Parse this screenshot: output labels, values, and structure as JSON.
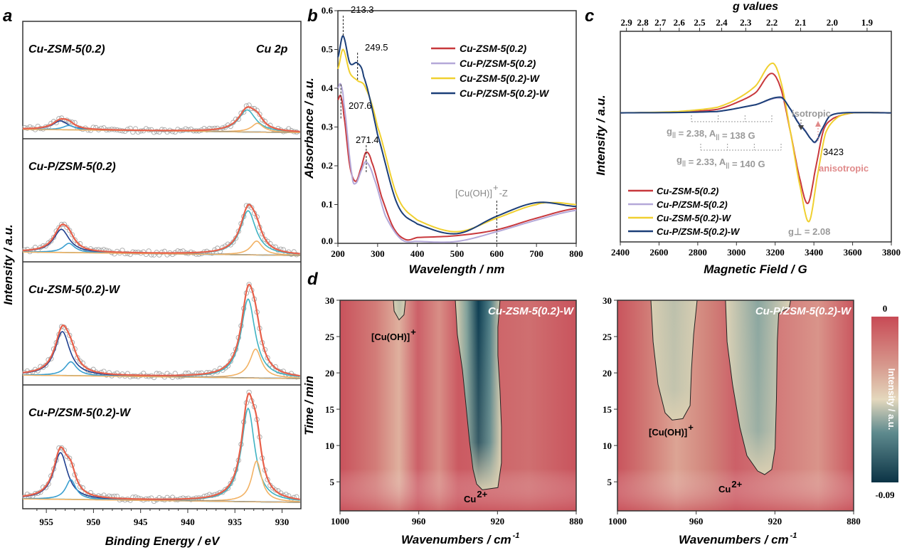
{
  "panel_labels": {
    "a": "a",
    "b": "b",
    "c": "c",
    "d": "d"
  },
  "colors": {
    "cu_zsm5": "#c8383c",
    "cu_p_zsm5": "#b4a8d8",
    "cu_zsm5_w": "#f0d030",
    "cu_p_zsm5_w": "#1c3f78",
    "xps_total": "#e8604a",
    "xps_comp_teal": "#3fb3c3",
    "xps_comp_orange": "#f2b264",
    "xps_comp_navy": "#1f3f8f",
    "xps_comp_blue": "#3a9fd0",
    "xps_points": "#a8a8a8",
    "annotation_gray": "#9a9a9a",
    "annotation_pink": "#e08a8a"
  },
  "chart_data": [
    {
      "id": "a",
      "type": "line",
      "xlabel": "Binding Energy / eV",
      "ylabel": "Intensity / a.u.",
      "xlim": [
        957.5,
        928
      ],
      "xticks": [
        "955",
        "950",
        "945",
        "940",
        "935",
        "930"
      ],
      "corner_label": "Cu 2p",
      "subpanels": [
        {
          "label": "Cu-ZSM-5(0.2)",
          "peaks": [
            {
              "center": 933.7,
              "height": 0.2,
              "fwhm": 2.2,
              "color": "#3fb3c3"
            },
            {
              "center": 932.6,
              "height": 0.08,
              "fwhm": 1.5,
              "color": "#f2b264"
            },
            {
              "center": 953.5,
              "height": 0.08,
              "fwhm": 2.0,
              "color": "#1f3f8f"
            },
            {
              "center": 952.6,
              "height": 0.04,
              "fwhm": 1.5,
              "color": "#3a9fd0"
            }
          ]
        },
        {
          "label": "Cu-P/ZSM-5(0.2)",
          "peaks": [
            {
              "center": 933.6,
              "height": 0.38,
              "fwhm": 2.0,
              "color": "#3fb3c3"
            },
            {
              "center": 932.7,
              "height": 0.12,
              "fwhm": 1.5,
              "color": "#f2b264"
            },
            {
              "center": 953.4,
              "height": 0.2,
              "fwhm": 2.0,
              "color": "#1f3f8f"
            },
            {
              "center": 952.6,
              "height": 0.08,
              "fwhm": 1.5,
              "color": "#3a9fd0"
            }
          ]
        },
        {
          "label": "Cu-ZSM-5(0.2)-W",
          "peaks": [
            {
              "center": 933.6,
              "height": 0.68,
              "fwhm": 1.8,
              "color": "#3fb3c3"
            },
            {
              "center": 932.8,
              "height": 0.25,
              "fwhm": 1.5,
              "color": "#f2b264"
            },
            {
              "center": 953.3,
              "height": 0.38,
              "fwhm": 1.9,
              "color": "#1f3f8f"
            },
            {
              "center": 952.4,
              "height": 0.12,
              "fwhm": 1.5,
              "color": "#3a9fd0"
            }
          ]
        },
        {
          "label": "Cu-P/ZSM-5(0.2)-W",
          "peaks": [
            {
              "center": 933.6,
              "height": 0.8,
              "fwhm": 1.7,
              "color": "#3fb3c3"
            },
            {
              "center": 932.7,
              "height": 0.35,
              "fwhm": 1.3,
              "color": "#f2b264"
            },
            {
              "center": 953.5,
              "height": 0.4,
              "fwhm": 1.8,
              "color": "#1f3f8f"
            },
            {
              "center": 952.4,
              "height": 0.17,
              "fwhm": 1.3,
              "color": "#3a9fd0"
            }
          ]
        }
      ]
    },
    {
      "id": "b",
      "type": "line",
      "xlabel": "Wavelength / nm",
      "ylabel": "Absorbance / a.u.",
      "xlim": [
        200,
        800
      ],
      "ylim": [
        0,
        0.6
      ],
      "xticks": [
        200,
        300,
        400,
        500,
        600,
        700,
        800
      ],
      "yticks": [
        "0.0",
        "0.1",
        "0.2",
        "0.3",
        "0.4",
        "0.5",
        "0.6"
      ],
      "legend": "top-right",
      "series": [
        {
          "name": "Cu-ZSM-5(0.2)",
          "color": "#c8383c",
          "x": [
            200,
            207,
            215,
            230,
            245,
            260,
            271,
            285,
            310,
            340,
            370,
            400,
            500,
            600,
            700,
            800
          ],
          "y": [
            0.37,
            0.38,
            0.33,
            0.2,
            0.16,
            0.2,
            0.235,
            0.21,
            0.12,
            0.04,
            0.01,
            0.015,
            0.02,
            0.035,
            0.065,
            0.09
          ]
        },
        {
          "name": "Cu-P/ZSM-5(0.2)",
          "color": "#b4a8d8",
          "x": [
            200,
            207,
            215,
            235,
            245,
            260,
            271,
            290,
            320,
            360,
            400,
            500,
            600,
            700,
            800
          ],
          "y": [
            0.4,
            0.41,
            0.36,
            0.18,
            0.155,
            0.19,
            0.21,
            0.17,
            0.07,
            0.01,
            0.005,
            0.005,
            0.03,
            0.06,
            0.085
          ]
        },
        {
          "name": "Cu-ZSM-5(0.2)-W",
          "color": "#f0d030",
          "x": [
            200,
            213,
            230,
            249,
            270,
            300,
            350,
            400,
            500,
            600,
            700,
            750,
            800
          ],
          "y": [
            0.45,
            0.5,
            0.44,
            0.42,
            0.4,
            0.3,
            0.12,
            0.06,
            0.03,
            0.065,
            0.1,
            0.105,
            0.1
          ]
        },
        {
          "name": "Cu-P/ZSM-5(0.2)-W",
          "color": "#1c3f78",
          "x": [
            200,
            213,
            230,
            249,
            265,
            300,
            350,
            400,
            500,
            600,
            700,
            800
          ],
          "y": [
            0.48,
            0.535,
            0.465,
            0.465,
            0.43,
            0.28,
            0.1,
            0.05,
            0.025,
            0.07,
            0.105,
            0.095
          ]
        }
      ],
      "annotations": [
        {
          "text": "213.3",
          "x": 213.3
        },
        {
          "text": "249.5",
          "x": 249.5
        },
        {
          "text": "207.6",
          "x": 207.6
        },
        {
          "text": "271.4",
          "x": 271.4
        },
        {
          "text": "[Cu(OH)]",
          "sup": "+",
          "suffix": "-Z",
          "x": 600
        }
      ]
    },
    {
      "id": "c",
      "type": "line",
      "title_top_axis": "g values",
      "xlabel": "Magnetic Field / G",
      "ylabel": "Intensity / a.u.",
      "xlim": [
        2400,
        3800
      ],
      "ylim": [
        -1.9,
        1.2
      ],
      "xticks": [
        2400,
        2600,
        2800,
        3000,
        3200,
        3400,
        3600,
        3800
      ],
      "gticks": [
        "2.9",
        "2.8",
        "2.7",
        "2.6",
        "2.5",
        "2.4",
        "2.3",
        "2.2",
        "2.1",
        "2.0",
        "1.9"
      ],
      "legend": "bottom-left",
      "series": [
        {
          "name": "Cu-ZSM-5(0.2)",
          "color": "#c8383c",
          "x": [
            2400,
            2700,
            2900,
            3000,
            3100,
            3180,
            3230,
            3280,
            3330,
            3370,
            3410,
            3450,
            3500,
            3600,
            3800
          ],
          "y": [
            0,
            0.01,
            0.05,
            0.15,
            0.3,
            0.58,
            0.35,
            -0.3,
            -1.0,
            -1.33,
            -0.8,
            -0.25,
            -0.08,
            0,
            0
          ]
        },
        {
          "name": "Cu-P/ZSM-5(0.2)",
          "color": "#b4a8d8",
          "x": [
            2400,
            2900,
            3100,
            3230,
            3280,
            3320,
            3350,
            3390,
            3410,
            3440,
            3480,
            3550,
            3800
          ],
          "y": [
            0,
            0.02,
            0.12,
            0.22,
            0.05,
            -0.14,
            -0.24,
            -0.4,
            -0.43,
            -0.26,
            -0.05,
            0,
            0
          ]
        },
        {
          "name": "Cu-ZSM-5(0.2)-W",
          "color": "#f0d030",
          "x": [
            2400,
            2700,
            2900,
            3000,
            3100,
            3185,
            3230,
            3280,
            3330,
            3375,
            3420,
            3460,
            3520,
            3600,
            3800
          ],
          "y": [
            0,
            0.02,
            0.08,
            0.2,
            0.4,
            0.73,
            0.45,
            -0.3,
            -1.1,
            -1.6,
            -0.9,
            -0.3,
            -0.07,
            0,
            0
          ]
        },
        {
          "name": "Cu-P/ZSM-5(0.2)-W",
          "color": "#1c3f78",
          "x": [
            2400,
            2900,
            3100,
            3230,
            3280,
            3320,
            3350,
            3390,
            3410,
            3440,
            3480,
            3550,
            3800
          ],
          "y": [
            0,
            0.02,
            0.12,
            0.23,
            0.05,
            -0.15,
            -0.25,
            -0.4,
            -0.42,
            -0.25,
            -0.05,
            0,
            0
          ]
        }
      ],
      "annotations": {
        "isotropic": "isotropic",
        "field_value": "3423",
        "anisotropic": "anisotropic",
        "g_perp": "g⊥ = 2.08",
        "g_par_1": {
          "g": "2.38",
          "A": "138 G"
        },
        "g_par_2": {
          "g": "2.33",
          "A": "140 G"
        }
      }
    },
    {
      "id": "d",
      "type": "heatmap",
      "xlabel": "Wavenumbers / cm-1",
      "xlabel_main": "Wavenumbers / cm",
      "xlabel_sup": "-1",
      "ylabel": "Time / min",
      "xlim": [
        1000,
        880
      ],
      "ylim": [
        1,
        30
      ],
      "xticks": [
        1000,
        960,
        920,
        880
      ],
      "yticks": [
        5,
        10,
        15,
        20,
        25,
        30
      ],
      "colorbar": {
        "label": "Intensity / a.u.",
        "max": "0",
        "min": "-0.09"
      },
      "maps": [
        {
          "title": "Cu-ZSM-5(0.2)-W",
          "labels": [
            {
              "text": "[Cu(OH)]",
              "sup": "+"
            },
            {
              "text": "Cu",
              "sup": "2+"
            }
          ],
          "contours": [
            {
              "points": [
                [
                  941.4,
                  30
                ],
                [
                  940.4,
                  25.3
                ],
                [
                  937.8,
                  20.4
                ],
                [
                  936,
                  15.5
                ],
                [
                  934.2,
                  10.6
                ],
                [
                  932.4,
                  6.7
                ],
                [
                  930.6,
                  4.7
                ],
                [
                  927.7,
                  3.9
                ],
                [
                  919.8,
                  4.2
                ],
                [
                  918,
                  7.6
                ],
                [
                  918,
                  12.5
                ],
                [
                  918.7,
                  17.5
                ],
                [
                  919.8,
                  22.4
                ],
                [
                  919.8,
                  26.3
                ],
                [
                  918.7,
                  30
                ]
              ],
              "depth": 1.0
            },
            {
              "points": [
                [
                  972.9,
                  30
                ],
                [
                  972.5,
                  28.5
                ],
                [
                  970,
                  27.3
                ],
                [
                  967.5,
                  28
                ],
                [
                  966.7,
                  30
                ]
              ],
              "depth": 0.2
            }
          ]
        },
        {
          "title": "Cu-P/ZSM-5(0.2)-W",
          "labels": [
            {
              "text": "[Cu(OH)]",
              "sup": "+"
            },
            {
              "text": "Cu",
              "sup": "2+"
            }
          ],
          "contours": [
            {
              "points": [
                [
                  945.1,
                  30
                ],
                [
                  944.3,
                  24.3
                ],
                [
                  941.5,
                  18.4
                ],
                [
                  937.8,
                  12.5
                ],
                [
                  934.2,
                  8.6
                ],
                [
                  928.8,
                  6.5
                ],
                [
                  925.2,
                  6
                ],
                [
                  921.6,
                  6.7
                ],
                [
                  919.9,
                  9.6
                ],
                [
                  919.2,
                  16.5
                ],
                [
                  918.8,
                  24.3
                ],
                [
                  918.1,
                  28.2
                ],
                [
                  912.7,
                  29
                ],
                [
                  912,
                  30
                ]
              ],
              "depth": 0.75
            },
            {
              "points": [
                [
                  983,
                  30
                ],
                [
                  981.9,
                  24.3
                ],
                [
                  979.4,
                  18.4
                ],
                [
                  975.8,
                  14.5
                ],
                [
                  972.2,
                  13.5
                ],
                [
                  966.8,
                  13.7
                ],
                [
                  963.1,
                  15.5
                ],
                [
                  962.4,
                  20.4
                ],
                [
                  961.3,
                  25.3
                ],
                [
                  959.5,
                  30
                ]
              ],
              "depth": 0.3
            }
          ]
        }
      ]
    }
  ]
}
